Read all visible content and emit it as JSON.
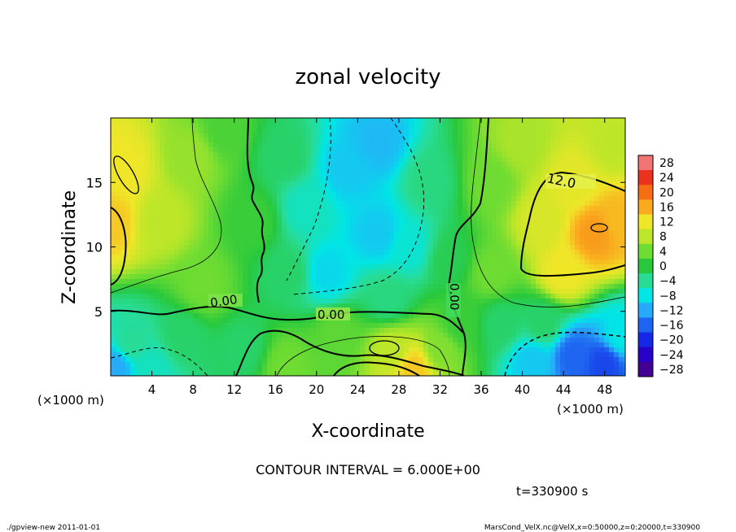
{
  "chart_data": {
    "type": "heatmap",
    "title": "zonal velocity",
    "xlabel": "X-coordinate",
    "ylabel": "Z-coordinate",
    "x_unit": "(×1000 m)",
    "y_unit": "(×1000 m)",
    "xlim": [
      0,
      50
    ],
    "ylim": [
      0,
      20
    ],
    "x_ticks": [
      "4",
      "8",
      "12",
      "16",
      "20",
      "24",
      "28",
      "32",
      "36",
      "40",
      "44",
      "48"
    ],
    "y_ticks": [
      "5",
      "10",
      "15"
    ],
    "colorbar_ticks": [
      "28",
      "24",
      "20",
      "16",
      "12",
      "8",
      "4",
      "0",
      "−4",
      "−8",
      "−12",
      "−16",
      "−20",
      "−24",
      "−28"
    ],
    "contour_labels": [
      "0.00",
      "0.00",
      "0.00",
      "12.0"
    ],
    "contour_interval_text": "CONTOUR INTERVAL = 6.000E+00",
    "time_text": "t=330900 s",
    "value_range": [
      -30,
      30
    ],
    "regions": [
      {
        "x": 0.0,
        "z": 12,
        "value": 14
      },
      {
        "x": 1.0,
        "z": 16,
        "value": 12
      },
      {
        "x": 5.0,
        "z": 12,
        "value": 8
      },
      {
        "x": 8.0,
        "z": 17,
        "value": 6
      },
      {
        "x": 9.0,
        "z": 7,
        "value": 4
      },
      {
        "x": 11.0,
        "z": 19,
        "value": 2
      },
      {
        "x": 14.0,
        "z": 12,
        "value": 1
      },
      {
        "x": 17.0,
        "z": 17,
        "value": -2
      },
      {
        "x": 17.5,
        "z": 8,
        "value": -2
      },
      {
        "x": 19.0,
        "z": 13,
        "value": -6
      },
      {
        "x": 21.0,
        "z": 8,
        "value": -9
      },
      {
        "x": 23.0,
        "z": 16,
        "value": -10
      },
      {
        "x": 26.0,
        "z": 18,
        "value": -11
      },
      {
        "x": 26.0,
        "z": 11,
        "value": -10
      },
      {
        "x": 29.0,
        "z": 10,
        "value": -7
      },
      {
        "x": 31.0,
        "z": 15,
        "value": -3
      },
      {
        "x": 33.0,
        "z": 9,
        "value": -1
      },
      {
        "x": 27.0,
        "z": 6,
        "value": -3
      },
      {
        "x": 22.0,
        "z": 3,
        "value": 3
      },
      {
        "x": 27.5,
        "z": 2,
        "value": 8
      },
      {
        "x": 29.5,
        "z": 0.6,
        "value": 14
      },
      {
        "x": 32.0,
        "z": 2,
        "value": 5
      },
      {
        "x": 34.0,
        "z": 4,
        "value": 1
      },
      {
        "x": 13.0,
        "z": 2,
        "value": -2
      },
      {
        "x": 7.0,
        "z": 3,
        "value": -2
      },
      {
        "x": 2.0,
        "z": 2.5,
        "value": -4
      },
      {
        "x": 0.5,
        "z": 0.7,
        "value": -12
      },
      {
        "x": 4.0,
        "z": 0.5,
        "value": -6
      },
      {
        "x": 17.0,
        "z": 0.7,
        "value": 4
      },
      {
        "x": 37.0,
        "z": 15,
        "value": 4
      },
      {
        "x": 37.0,
        "z": 8,
        "value": 4
      },
      {
        "x": 38.0,
        "z": 4,
        "value": -2
      },
      {
        "x": 40.0,
        "z": 18,
        "value": 7
      },
      {
        "x": 42.0,
        "z": 12,
        "value": 10
      },
      {
        "x": 45.0,
        "z": 15,
        "value": 11
      },
      {
        "x": 47.0,
        "z": 11,
        "value": 17
      },
      {
        "x": 49.5,
        "z": 12,
        "value": 15
      },
      {
        "x": 44.0,
        "z": 8,
        "value": 12
      },
      {
        "x": 49.0,
        "z": 18,
        "value": 8
      },
      {
        "x": 42.0,
        "z": 4,
        "value": -2
      },
      {
        "x": 41.0,
        "z": 1.2,
        "value": -10
      },
      {
        "x": 45.0,
        "z": 1.5,
        "value": -16
      },
      {
        "x": 48.0,
        "z": 1.0,
        "value": -18
      },
      {
        "x": 49.5,
        "z": 3,
        "value": -8
      }
    ]
  },
  "footer": {
    "left": "./gpview-new  2011-01-01",
    "right": "MarsCond_VelX.nc@VelX,x=0:50000,z=0:20000,t=330900"
  }
}
